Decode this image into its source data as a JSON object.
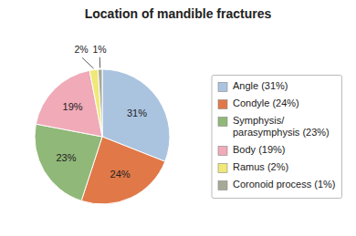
{
  "chart_data": {
    "type": "pie",
    "title": "Location of mandible fractures",
    "categories": [
      "Angle (31%)",
      "Condyle (24%)",
      "Symphysis/\nparasymphysis (23%)",
      "Body (19%)",
      "Ramus (2%)",
      "Coronoid process (1%)"
    ],
    "values": [
      31,
      24,
      23,
      19,
      2,
      1
    ],
    "value_labels": [
      "31%",
      "24%",
      "23%",
      "19%",
      "2%",
      "1%"
    ],
    "colors": [
      "#aac4e0",
      "#e07848",
      "#90b878",
      "#f0aab8",
      "#f0e878",
      "#a8a898"
    ],
    "data_labels": true,
    "legend": "right"
  }
}
